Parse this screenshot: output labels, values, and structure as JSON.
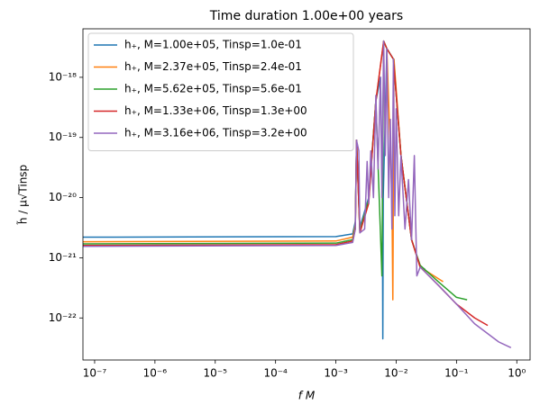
{
  "chart_data": {
    "type": "line",
    "title": "Time duration 1.00e+00 years",
    "x_label": "f M",
    "y_label": "h̃ / μ√Tinsp",
    "log_x": true,
    "log_y": true,
    "legend": "upper left",
    "xlim": [
      6.4e-08,
      1.66
    ],
    "ylim": [
      2e-23,
      6.4e-18
    ],
    "xticks": [
      {
        "value": 1e-07,
        "label": "10⁻⁷"
      },
      {
        "value": 1e-06,
        "label": "10⁻⁶"
      },
      {
        "value": 1e-05,
        "label": "10⁻⁵"
      },
      {
        "value": 0.0001,
        "label": "10⁻⁴"
      },
      {
        "value": 0.001,
        "label": "10⁻³"
      },
      {
        "value": 0.01,
        "label": "10⁻²"
      },
      {
        "value": 0.1,
        "label": "10⁻¹"
      },
      {
        "value": 1,
        "label": "10⁰"
      }
    ],
    "yticks": [
      {
        "value": 1e-22,
        "label": "10⁻²²"
      },
      {
        "value": 1e-21,
        "label": "10⁻²¹"
      },
      {
        "value": 1e-20,
        "label": "10⁻²⁰"
      },
      {
        "value": 1e-19,
        "label": "10⁻¹⁹"
      },
      {
        "value": 1e-18,
        "label": "10⁻¹⁸"
      }
    ],
    "series": [
      {
        "name": "h₊, M=1.00e+05, Tinsp=1.0e-01",
        "color": "#1f77b4",
        "x": [
          6.4e-08,
          0.001,
          0.0019,
          0.0021,
          0.0022,
          0.0025,
          0.0035,
          0.0046,
          0.0055,
          0.0059,
          0.006,
          0.0061,
          0.007,
          0.009,
          0.012,
          0.018,
          0.025,
          0.03
        ],
        "values": [
          2.2e-21,
          2.25e-21,
          2.5e-21,
          4e-21,
          9e-20,
          3.2e-21,
          1e-20,
          4e-19,
          1e-18,
          1e-20,
          4.5e-23,
          1e-20,
          3e-18,
          2e-18,
          5e-20,
          2e-21,
          7e-22,
          6.5e-22
        ]
      },
      {
        "name": "h₊, M=2.37e+05, Tinsp=2.4e-01",
        "color": "#ff7f0e",
        "x": [
          6.4e-08,
          0.001,
          0.0019,
          0.0021,
          0.0022,
          0.0025,
          0.0035,
          0.0046,
          0.0062,
          0.007,
          0.0085,
          0.0088,
          0.0092,
          0.012,
          0.018,
          0.025,
          0.05,
          0.06
        ],
        "values": [
          1.85e-21,
          1.9e-21,
          2.2e-21,
          3.5e-21,
          9e-20,
          2.8e-21,
          9e-21,
          4e-19,
          4e-18,
          3e-18,
          1e-20,
          2e-22,
          2e-18,
          5e-20,
          2e-21,
          7e-22,
          4.5e-22,
          4e-22
        ]
      },
      {
        "name": "h₊, M=5.62e+05, Tinsp=5.6e-01",
        "color": "#2ca02c",
        "x": [
          6.4e-08,
          0.001,
          0.0019,
          0.0021,
          0.0022,
          0.0025,
          0.0035,
          0.0046,
          0.0058,
          0.0062,
          0.007,
          0.009,
          0.012,
          0.018,
          0.025,
          0.05,
          0.1,
          0.15
        ],
        "values": [
          1.7e-21,
          1.75e-21,
          2e-21,
          3.2e-21,
          9e-20,
          2.7e-21,
          9e-21,
          4e-19,
          5e-22,
          4e-18,
          3e-18,
          2e-18,
          5e-20,
          2e-21,
          7.5e-22,
          4e-22,
          2.2e-22,
          2e-22
        ]
      },
      {
        "name": "h₊, M=1.33e+06, Tinsp=1.3e+00",
        "color": "#d62728",
        "x": [
          6.4e-08,
          0.001,
          0.0019,
          0.0021,
          0.0022,
          0.0025,
          0.0035,
          0.0046,
          0.0062,
          0.007,
          0.009,
          0.012,
          0.018,
          0.025,
          0.05,
          0.1,
          0.2,
          0.33
        ],
        "values": [
          1.6e-21,
          1.65e-21,
          1.9e-21,
          3e-21,
          9e-20,
          2.6e-21,
          8e-21,
          4e-19,
          4e-18,
          3e-18,
          2e-18,
          5e-20,
          2e-21,
          7e-22,
          3.5e-22,
          1.7e-22,
          1e-22,
          7.5e-23
        ]
      },
      {
        "name": "h₊, M=3.16e+06, Tinsp=3.2e+00",
        "color": "#9467bd",
        "x": [
          6.4e-08,
          0.001,
          0.0019,
          0.0021,
          0.0022,
          0.0024,
          0.0025,
          0.003,
          0.0033,
          0.0035,
          0.0038,
          0.0042,
          0.0046,
          0.005,
          0.0055,
          0.0058,
          0.0062,
          0.0066,
          0.007,
          0.0075,
          0.008,
          0.0085,
          0.009,
          0.0095,
          0.01,
          0.011,
          0.012,
          0.014,
          0.016,
          0.018,
          0.02,
          0.022,
          0.025,
          0.05,
          0.1,
          0.2,
          0.5,
          0.8
        ],
        "values": [
          1.55e-21,
          1.6e-21,
          1.8e-21,
          3e-21,
          9e-20,
          6e-20,
          2.6e-21,
          3e-21,
          4e-20,
          8e-21,
          6e-20,
          1e-20,
          5e-19,
          3e-20,
          1e-18,
          1e-20,
          4e-18,
          5e-20,
          3e-18,
          1e-20,
          2e-19,
          3e-21,
          2e-18,
          5e-21,
          3e-19,
          5e-21,
          5e-20,
          3e-21,
          2e-20,
          2e-21,
          5e-20,
          5e-22,
          7e-22,
          3.5e-22,
          1.7e-22,
          8e-23,
          4e-23,
          3.2e-23
        ]
      }
    ]
  }
}
